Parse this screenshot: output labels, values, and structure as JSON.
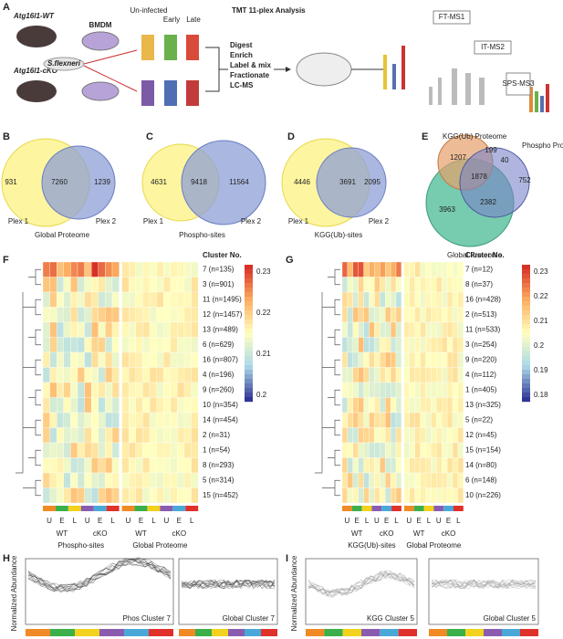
{
  "panel_a": {
    "label": "A",
    "mouse_wt": "Atg16l1-WT",
    "mouse_cko": "Atg16l1-cKO",
    "bmdm": "BMDM",
    "pathogen": "S.flexneri",
    "uninfected": "Un-infected",
    "early": "Early",
    "late": "Late",
    "title": "TMT 11-plex Analysis",
    "steps": [
      "Digest",
      "Enrich",
      "Label & mix",
      "Fractionate",
      "LC-MS"
    ],
    "ms1": "FT-MS1",
    "ms2": "IT-MS2",
    "ms3": "SPS-MS3"
  },
  "venns": [
    {
      "label": "B",
      "left": "931",
      "center": "7260",
      "right": "1239",
      "left_name": "Plex 1",
      "right_name": "Plex 2",
      "caption": "Global Proteome"
    },
    {
      "label": "C",
      "left": "4631",
      "center": "9418",
      "right": "11564",
      "left_name": "Plex 1",
      "right_name": "Plex 2",
      "caption": "Phospho-sites"
    },
    {
      "label": "D",
      "left": "4446",
      "center": "3691",
      "right": "2095",
      "left_name": "Plex 1",
      "right_name": "Plex 2",
      "caption": "KGG(Ub)-sites"
    }
  ],
  "venn_e": {
    "label": "E",
    "set1": "KGG(Ub) Proteome",
    "set2": "Phospho Proteome",
    "set3": "Global Proteome",
    "regions": [
      "199",
      "40",
      "1207",
      "1878",
      "752",
      "2382",
      "3963"
    ]
  },
  "heatmaps": [
    {
      "label": "F",
      "header": "Cluster No.",
      "clusters": [
        "7 (n=135)",
        "3 (n=901)",
        "11 (n=1495)",
        "12 (n=1457)",
        "13 (n=489)",
        "6 (n=629)",
        "16 (n=807)",
        "4 (n=196)",
        "9 (n=260)",
        "10 (n=354)",
        "14 (n=454)",
        "2 (n=31)",
        "1 (n=54)",
        "8 (n=293)",
        "5 (n=314)",
        "15 (n=452)"
      ],
      "scale": [
        "0.23",
        "0.22",
        "0.21",
        "0.2"
      ],
      "conditions": [
        "U",
        "E",
        "L",
        "U",
        "E",
        "L",
        "U",
        "E",
        "L",
        "U",
        "E",
        "L"
      ],
      "groups": [
        "WT",
        "cKO",
        "WT",
        "cKO"
      ],
      "captions": [
        "Phospho-sites",
        "Global Proteome"
      ]
    },
    {
      "label": "G",
      "header": "Cluster No.",
      "clusters": [
        "7 (n=12)",
        "8 (n=37)",
        "16 (n=428)",
        "2 (n=513)",
        "11 (n=533)",
        "3 (n=254)",
        "9 (n=220)",
        "4 (n=112)",
        "1 (n=405)",
        "13 (n=325)",
        "5 (n=22)",
        "12 (n=45)",
        "15 (n=154)",
        "14 (n=80)",
        "6 (n=148)",
        "10 (n=226)"
      ],
      "scale": [
        "0.23",
        "0.22",
        "0.21",
        "0.2",
        "0.19",
        "0.18"
      ],
      "conditions": [
        "U",
        "E",
        "L",
        "U",
        "E",
        "L",
        "U",
        "E",
        "L",
        "U",
        "E",
        "L"
      ],
      "groups": [
        "WT",
        "cKO",
        "WT",
        "cKO"
      ],
      "captions": [
        "KGG(Ub)-sites",
        "Global Proteome"
      ]
    }
  ],
  "profiles": [
    {
      "label": "H",
      "ylabel": "Normalized Abundance",
      "plots": [
        "Phos Cluster 7",
        "Global Cluster 7"
      ]
    },
    {
      "label": "I",
      "ylabel": "Normalized Abundance",
      "plots": [
        "KGG Cluster 5",
        "Global Cluster 5"
      ]
    }
  ]
}
